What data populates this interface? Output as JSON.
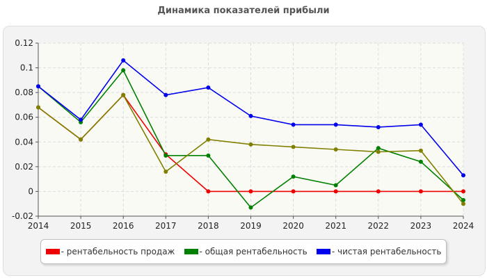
{
  "chart_data": {
    "type": "line",
    "title": "Динамика показателей прибыли",
    "x": [
      2014,
      2015,
      2016,
      2017,
      2018,
      2019,
      2020,
      2021,
      2022,
      2023,
      2024
    ],
    "ylim": [
      -0.02,
      0.12
    ],
    "yticks": [
      "-0.02",
      "0",
      "0.02",
      "0.04",
      "0.06",
      "0.08",
      "0.1",
      "0.12"
    ],
    "xticks": [
      "2014",
      "2015",
      "2016",
      "2017",
      "2018",
      "2019",
      "2020",
      "2021",
      "2022",
      "2023",
      "2024"
    ],
    "grid": true,
    "legend_position": "bottom",
    "series": [
      {
        "name": "- рентабельность продаж",
        "color": "#ee0000",
        "values": [
          0.068,
          0.042,
          0.078,
          0.03,
          0.0,
          0.0,
          0.0,
          0.0,
          0.0,
          0.0,
          0.0
        ]
      },
      {
        "name": "- общая рентабельность",
        "color": "#008000",
        "values": [
          0.085,
          0.056,
          0.098,
          0.029,
          0.029,
          -0.013,
          0.012,
          0.005,
          0.035,
          0.024,
          -0.007
        ]
      },
      {
        "name": "- чистая рентабельность",
        "color": "#0000ee",
        "values": [
          0.085,
          0.058,
          0.106,
          0.078,
          0.084,
          0.061,
          0.054,
          0.054,
          0.052,
          0.054,
          0.013
        ]
      },
      {
        "color": "#808000",
        "values": [
          0.068,
          0.042,
          0.078,
          0.016,
          0.042,
          0.038,
          0.036,
          0.034,
          0.032,
          0.033,
          -0.01
        ]
      }
    ]
  }
}
